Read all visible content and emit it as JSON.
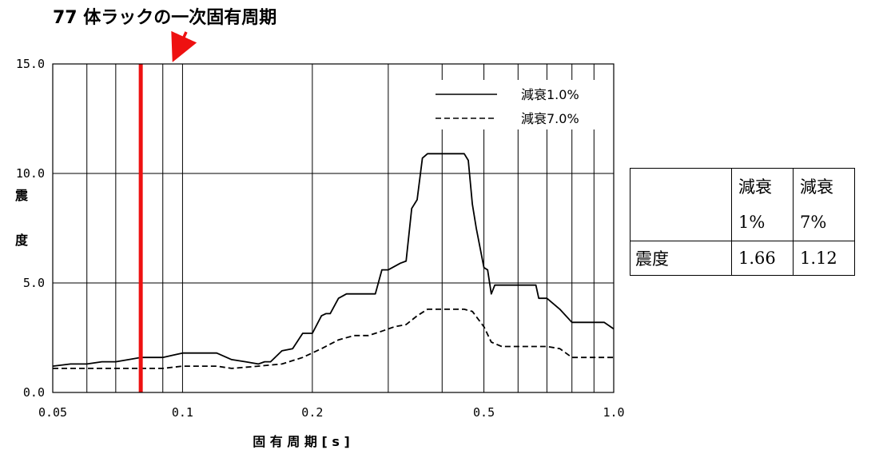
{
  "annotation": "77 体ラックの一次固有周期",
  "chart_data": {
    "type": "line",
    "xscale": "log",
    "xlim": [
      0.05,
      1.0
    ],
    "ylim": [
      0.0,
      15.0
    ],
    "xlabel": "固 有 周 期 [ s ]",
    "ylabel": "震 度",
    "x_tick_labels": [
      "0.05",
      "0.1",
      "0.2",
      "0.5",
      "1.0"
    ],
    "y_tick_labels": [
      "0.0",
      "5.0",
      "10.0",
      "15.0"
    ],
    "grid": true,
    "legend_position": "top-right",
    "marker_period": 0.08,
    "marker_color": "#ee1111",
    "series": [
      {
        "name": "減衰1.0%",
        "style": "solid",
        "color": "#000000",
        "x": [
          0.05,
          0.055,
          0.06,
          0.065,
          0.07,
          0.075,
          0.08,
          0.085,
          0.09,
          0.095,
          0.1,
          0.105,
          0.11,
          0.12,
          0.13,
          0.14,
          0.15,
          0.155,
          0.16,
          0.17,
          0.18,
          0.19,
          0.2,
          0.21,
          0.215,
          0.22,
          0.23,
          0.24,
          0.25,
          0.28,
          0.29,
          0.3,
          0.32,
          0.33,
          0.34,
          0.35,
          0.36,
          0.37,
          0.38,
          0.39,
          0.4,
          0.45,
          0.46,
          0.47,
          0.48,
          0.5,
          0.51,
          0.52,
          0.53,
          0.55,
          0.6,
          0.66,
          0.67,
          0.7,
          0.75,
          0.8,
          0.9,
          0.95,
          1.0
        ],
        "y": [
          1.2,
          1.3,
          1.3,
          1.4,
          1.4,
          1.5,
          1.6,
          1.6,
          1.6,
          1.7,
          1.8,
          1.8,
          1.8,
          1.8,
          1.5,
          1.4,
          1.3,
          1.4,
          1.4,
          1.9,
          2.0,
          2.7,
          2.7,
          3.5,
          3.6,
          3.6,
          4.3,
          4.5,
          4.5,
          4.5,
          5.6,
          5.6,
          5.9,
          6.0,
          8.4,
          8.8,
          10.7,
          10.9,
          10.9,
          10.9,
          10.9,
          10.9,
          10.6,
          8.6,
          7.5,
          5.7,
          5.6,
          4.5,
          4.9,
          4.9,
          4.9,
          4.9,
          4.3,
          4.3,
          3.8,
          3.2,
          3.2,
          3.2,
          2.9
        ]
      },
      {
        "name": "減衰7.0%",
        "style": "dashed",
        "color": "#000000",
        "x": [
          0.05,
          0.06,
          0.07,
          0.08,
          0.09,
          0.1,
          0.11,
          0.12,
          0.13,
          0.15,
          0.17,
          0.19,
          0.21,
          0.23,
          0.25,
          0.27,
          0.29,
          0.31,
          0.33,
          0.35,
          0.37,
          0.4,
          0.45,
          0.47,
          0.5,
          0.52,
          0.55,
          0.6,
          0.65,
          0.7,
          0.75,
          0.8,
          0.85,
          0.9,
          1.0
        ],
        "y": [
          1.1,
          1.1,
          1.1,
          1.1,
          1.1,
          1.2,
          1.2,
          1.2,
          1.1,
          1.2,
          1.3,
          1.6,
          2.0,
          2.4,
          2.6,
          2.6,
          2.8,
          3.0,
          3.1,
          3.5,
          3.8,
          3.8,
          3.8,
          3.7,
          3.0,
          2.3,
          2.1,
          2.1,
          2.1,
          2.1,
          2.0,
          1.6,
          1.6,
          1.6,
          1.6
        ]
      }
    ]
  },
  "table": {
    "col1": "減衰",
    "col1_sub": "1%",
    "col2": "減衰",
    "col2_sub": "7%",
    "row_label": "震度",
    "val1": "1.66",
    "val2": "1.12"
  }
}
